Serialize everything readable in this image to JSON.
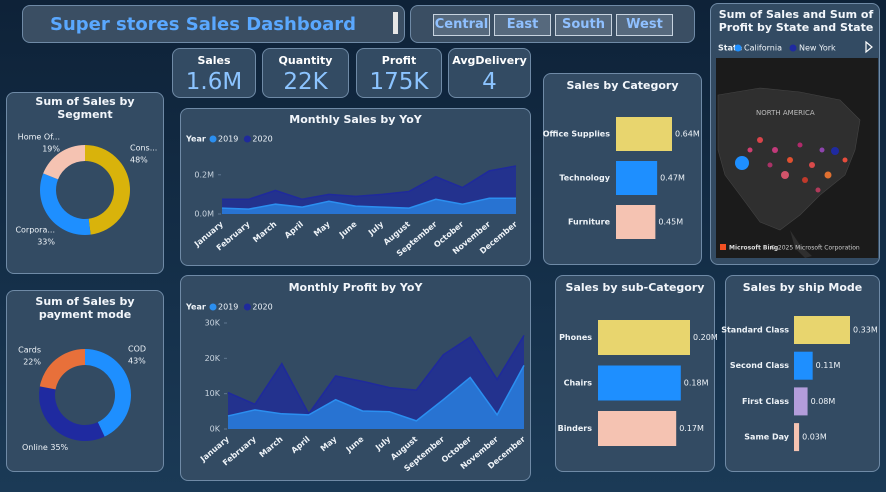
{
  "header": {
    "title": "Super stores Sales Dashboard"
  },
  "slicer": {
    "options": [
      "Central",
      "East",
      "South",
      "West"
    ]
  },
  "kpis": [
    {
      "label": "Sales",
      "value": "1.6M"
    },
    {
      "label": "Quantity",
      "value": "22K"
    },
    {
      "label": "Profit",
      "value": "175K"
    },
    {
      "label": "AvgDelivery",
      "value": "4"
    }
  ],
  "map": {
    "title": "Sum of Sales and Sum of Profit by State and State",
    "legend_title": "State",
    "legend": [
      {
        "name": "California",
        "color": "#1e8fff"
      },
      {
        "name": "New York",
        "color": "#1f2aa0"
      }
    ],
    "region_label": "NORTH AMERICA",
    "brand": "Microsoft Bing",
    "attribution": "© 2025 Microsoft Corporation"
  },
  "chart_data": [
    {
      "type": "donut",
      "title": "Sum of Sales by Segment",
      "categories": [
        "Cons...",
        "Corpora...",
        "Home Of..."
      ],
      "values": [
        48,
        33,
        19
      ],
      "value_labels": [
        "48%",
        "33%",
        "19%"
      ],
      "colors": [
        "#d9b30b",
        "#1e8fff",
        "#f5c3b2"
      ]
    },
    {
      "type": "donut",
      "title": "Sum of Sales by payment mode",
      "categories": [
        "COD",
        "Online",
        "Cards"
      ],
      "values": [
        43,
        35,
        22
      ],
      "value_labels": [
        "43%",
        "35%",
        "22%"
      ],
      "colors": [
        "#1e8fff",
        "#1f2aa0",
        "#e8703a"
      ]
    },
    {
      "type": "area",
      "title": "Monthly Sales by YoY",
      "legend_title": "Year",
      "categories": [
        "January",
        "February",
        "March",
        "April",
        "May",
        "June",
        "July",
        "August",
        "September",
        "October",
        "November",
        "December"
      ],
      "series": [
        {
          "name": "2019",
          "color": "#2b8ff0",
          "values": [
            0.03,
            0.025,
            0.05,
            0.035,
            0.065,
            0.04,
            0.035,
            0.03,
            0.075,
            0.05,
            0.08,
            0.08
          ]
        },
        {
          "name": "2020",
          "color": "#1f2a9c",
          "values": [
            0.075,
            0.075,
            0.12,
            0.075,
            0.1,
            0.09,
            0.1,
            0.115,
            0.19,
            0.135,
            0.22,
            0.245
          ]
        }
      ],
      "ylim": [
        0,
        0.26
      ],
      "yticks": [
        {
          "value": 0,
          "label": "0.0M"
        },
        {
          "value": 0.2,
          "label": "0.2M"
        }
      ]
    },
    {
      "type": "area",
      "title": "Monthly Profit by YoY",
      "legend_title": "Year",
      "categories": [
        "January",
        "February",
        "March",
        "April",
        "May",
        "June",
        "July",
        "August",
        "September",
        "October",
        "November",
        "December"
      ],
      "series": [
        {
          "name": "2019",
          "color": "#2b8ff0",
          "values": [
            3.7,
            5.4,
            4.3,
            4,
            8.3,
            5.1,
            4.9,
            2.3,
            8.3,
            14.6,
            4,
            18
          ]
        },
        {
          "name": "2020",
          "color": "#1f2a9c",
          "values": [
            10.3,
            7,
            18.5,
            4.3,
            15,
            13.5,
            11.7,
            11,
            21,
            26,
            14,
            26.5
          ]
        }
      ],
      "ylim": [
        0,
        30
      ],
      "yticks": [
        {
          "value": 0,
          "label": "0K"
        },
        {
          "value": 10,
          "label": "10K"
        },
        {
          "value": 20,
          "label": "20K"
        },
        {
          "value": 30,
          "label": "30K"
        }
      ]
    },
    {
      "type": "barh",
      "title": "Sales by Category",
      "categories": [
        "Office Supplies",
        "Technology",
        "Furniture"
      ],
      "values": [
        0.64,
        0.47,
        0.45
      ],
      "value_labels": [
        "0.64M",
        "0.47M",
        "0.45M"
      ],
      "colors": [
        "#e8d56e",
        "#1e8fff",
        "#f5c3b2"
      ]
    },
    {
      "type": "barh",
      "title": "Sales by sub-Category",
      "categories": [
        "Phones",
        "Chairs",
        "Binders"
      ],
      "values": [
        0.2,
        0.18,
        0.17
      ],
      "value_labels": [
        "0.20M",
        "0.18M",
        "0.17M"
      ],
      "colors": [
        "#e8d56e",
        "#1e8fff",
        "#f5c3b2"
      ]
    },
    {
      "type": "barh",
      "title": "Sales by ship Mode",
      "categories": [
        "Standard Class",
        "Second Class",
        "First Class",
        "Same Day"
      ],
      "values": [
        0.33,
        0.11,
        0.08,
        0.03
      ],
      "value_labels": [
        "0.33M",
        "0.11M",
        "0.08M",
        "0.03M"
      ],
      "colors": [
        "#e8d56e",
        "#1e8fff",
        "#b39ddb",
        "#f5c3b2"
      ]
    }
  ]
}
